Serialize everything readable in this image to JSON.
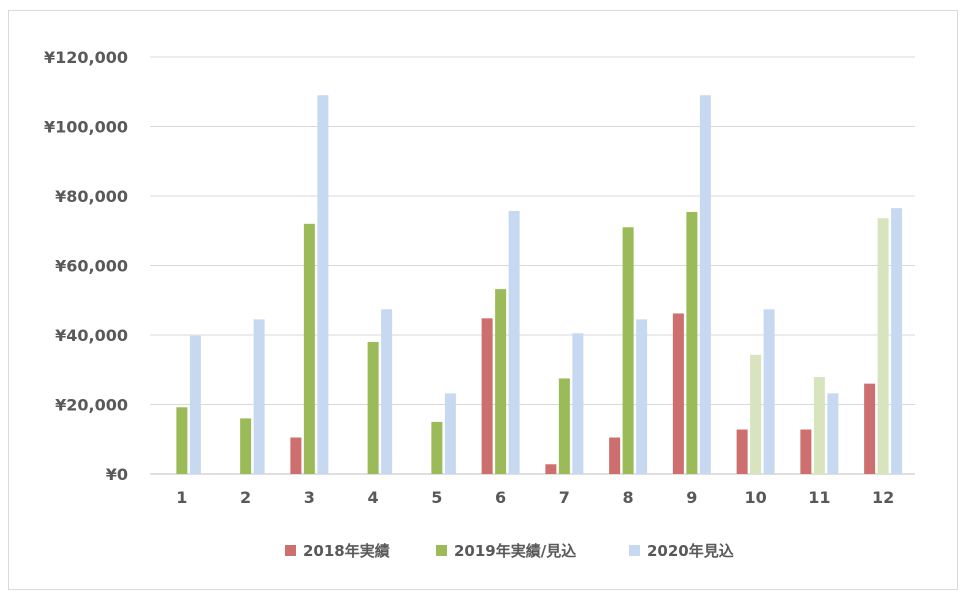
{
  "chart_data": {
    "type": "bar",
    "categories": [
      "1",
      "2",
      "3",
      "4",
      "5",
      "6",
      "7",
      "8",
      "9",
      "10",
      "11",
      "12"
    ],
    "series": [
      {
        "name": "2018年実績",
        "color": "#cd6f6f",
        "values": [
          0,
          0,
          10500,
          0,
          0,
          44800,
          2800,
          10500,
          46200,
          12800,
          12800,
          26000
        ]
      },
      {
        "name": "2019年実績/見込",
        "color": "#9bbb59",
        "forecast_color": "#d7e4bd",
        "values": [
          19200,
          16000,
          72000,
          38000,
          15000,
          53200,
          27500,
          71000,
          75400,
          34300,
          27900,
          73600
        ],
        "forecast_from_index": 9
      },
      {
        "name": "2020年見込",
        "color": "#c6d9f1",
        "values": [
          39800,
          44500,
          109000,
          47400,
          23200,
          75700,
          40500,
          44500,
          109000,
          47400,
          23200,
          76500
        ]
      }
    ],
    "ylim": [
      0,
      120000
    ],
    "yticks": [
      0,
      20000,
      40000,
      60000,
      80000,
      100000,
      120000
    ],
    "ytick_labels": [
      "¥0",
      "¥20,000",
      "¥40,000",
      "¥60,000",
      "¥80,000",
      "¥100,000",
      "¥120,000"
    ],
    "grid": true,
    "legend_position": "bottom",
    "title": "",
    "xlabel": "",
    "ylabel": ""
  }
}
